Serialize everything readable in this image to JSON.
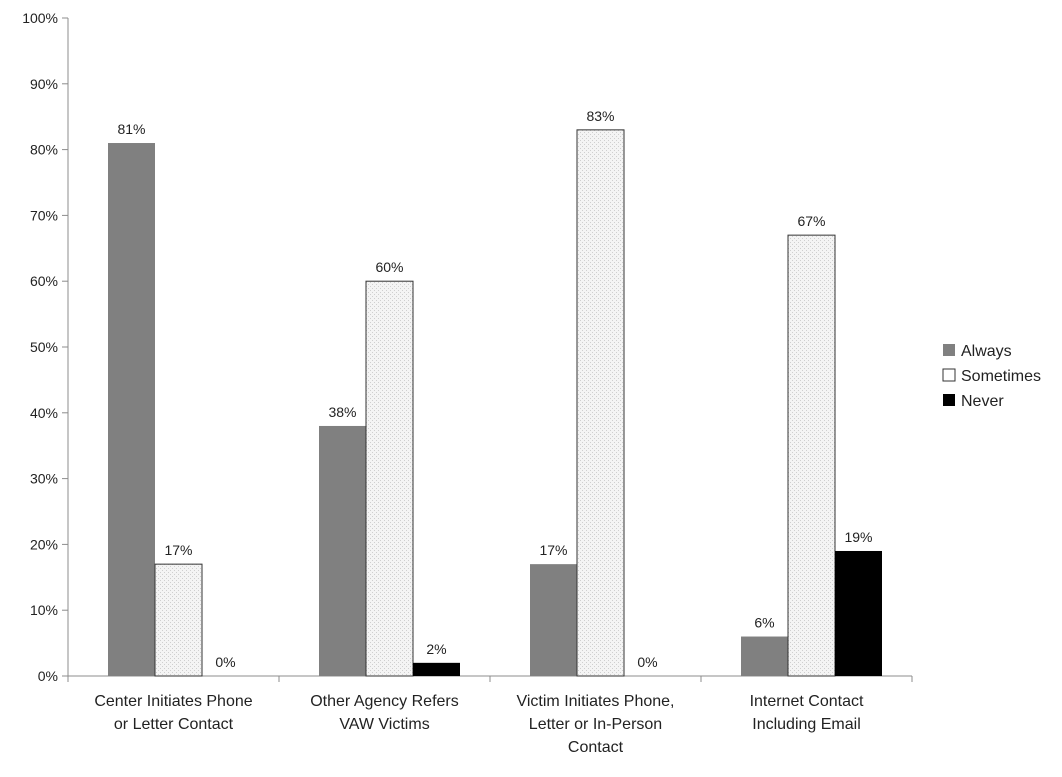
{
  "chart_data": {
    "type": "bar",
    "title": "",
    "xlabel": "",
    "ylabel": "",
    "ylim": [
      0,
      100
    ],
    "y_ticks": [
      "0%",
      "10%",
      "20%",
      "30%",
      "40%",
      "50%",
      "60%",
      "70%",
      "80%",
      "90%",
      "100%"
    ],
    "grid": false,
    "legend_position": "right",
    "categories": [
      [
        "Center Initiates Phone",
        "or Letter Contact"
      ],
      [
        "Other Agency Refers",
        "VAW Victims"
      ],
      [
        "Victim Initiates Phone,",
        "Letter or In-Person",
        "Contact"
      ],
      [
        "Internet Contact",
        "Including Email"
      ]
    ],
    "series": [
      {
        "name": "Always",
        "color": "#808080",
        "pattern": "solid",
        "values": [
          81,
          38,
          17,
          6
        ],
        "labels": [
          "81%",
          "38%",
          "17%",
          "6%"
        ]
      },
      {
        "name": "Sometimes",
        "color": "#f1f1f1",
        "pattern": "dotted",
        "values": [
          17,
          60,
          83,
          67
        ],
        "labels": [
          "17%",
          "60%",
          "83%",
          "67%"
        ]
      },
      {
        "name": "Never",
        "color": "#000000",
        "pattern": "solid",
        "values": [
          0,
          2,
          0,
          19
        ],
        "labels": [
          "0%",
          "2%",
          "0%",
          "19%"
        ]
      }
    ]
  }
}
